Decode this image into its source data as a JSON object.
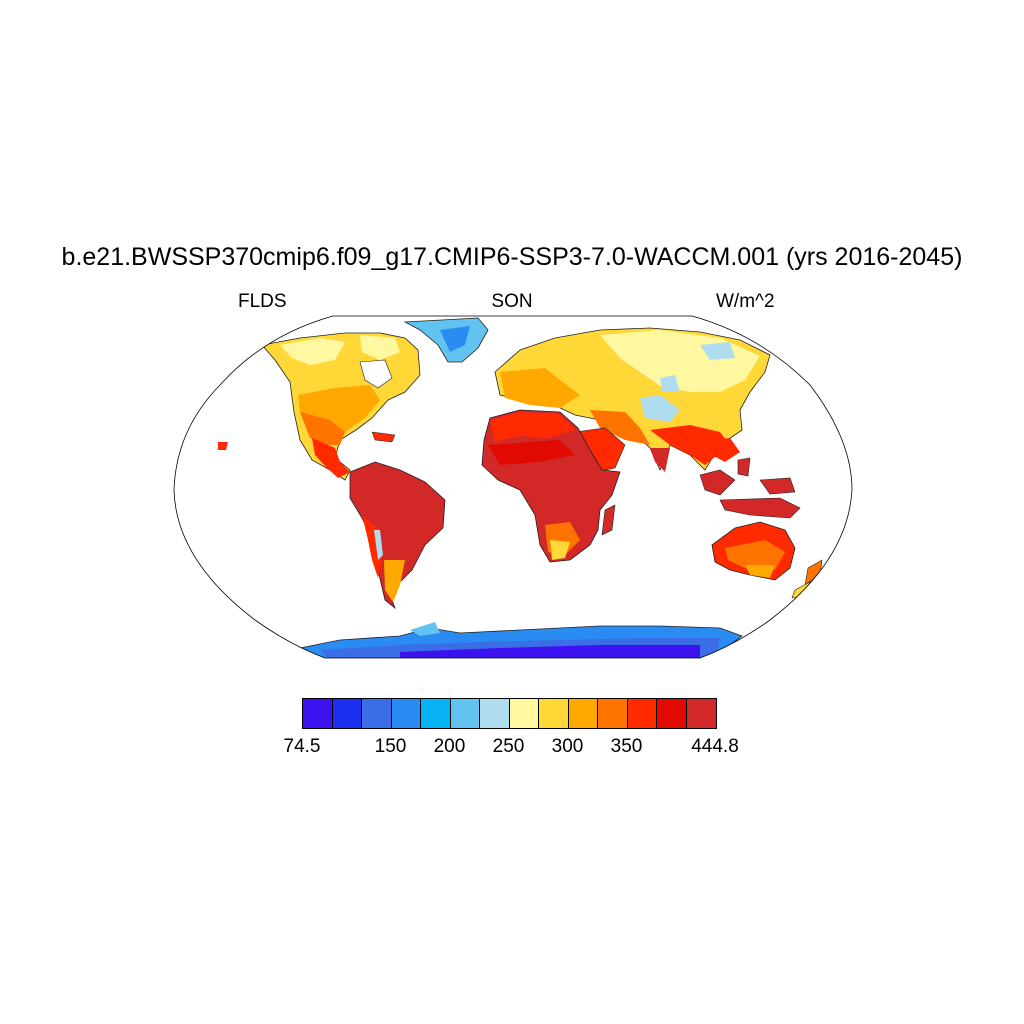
{
  "title": "b.e21.BWSSP370cmip6.f09_g17.CMIP6-SSP3-7.0-WACCM.001 (yrs 2016-2045)",
  "left_label": "FLDS",
  "center_label": "SON",
  "right_label": "W/m^2",
  "projection": "robinson",
  "colorbar": {
    "colors": [
      "#3c13f0",
      "#1a2ff0",
      "#3b6ee6",
      "#2a8cf2",
      "#06b2f4",
      "#63c3f0",
      "#b0dcf0",
      "#fff8a0",
      "#ffd838",
      "#ffa800",
      "#ff7300",
      "#ff2a00",
      "#e00a00",
      "#d22828"
    ],
    "labels": [
      {
        "text": "74.5",
        "fraction": 0.0
      },
      {
        "text": "150",
        "fraction": 0.2143
      },
      {
        "text": "200",
        "fraction": 0.3571
      },
      {
        "text": "250",
        "fraction": 0.5
      },
      {
        "text": "300",
        "fraction": 0.6429
      },
      {
        "text": "350",
        "fraction": 0.7857
      },
      {
        "text": "444.8",
        "fraction": 1.0
      }
    ]
  }
}
